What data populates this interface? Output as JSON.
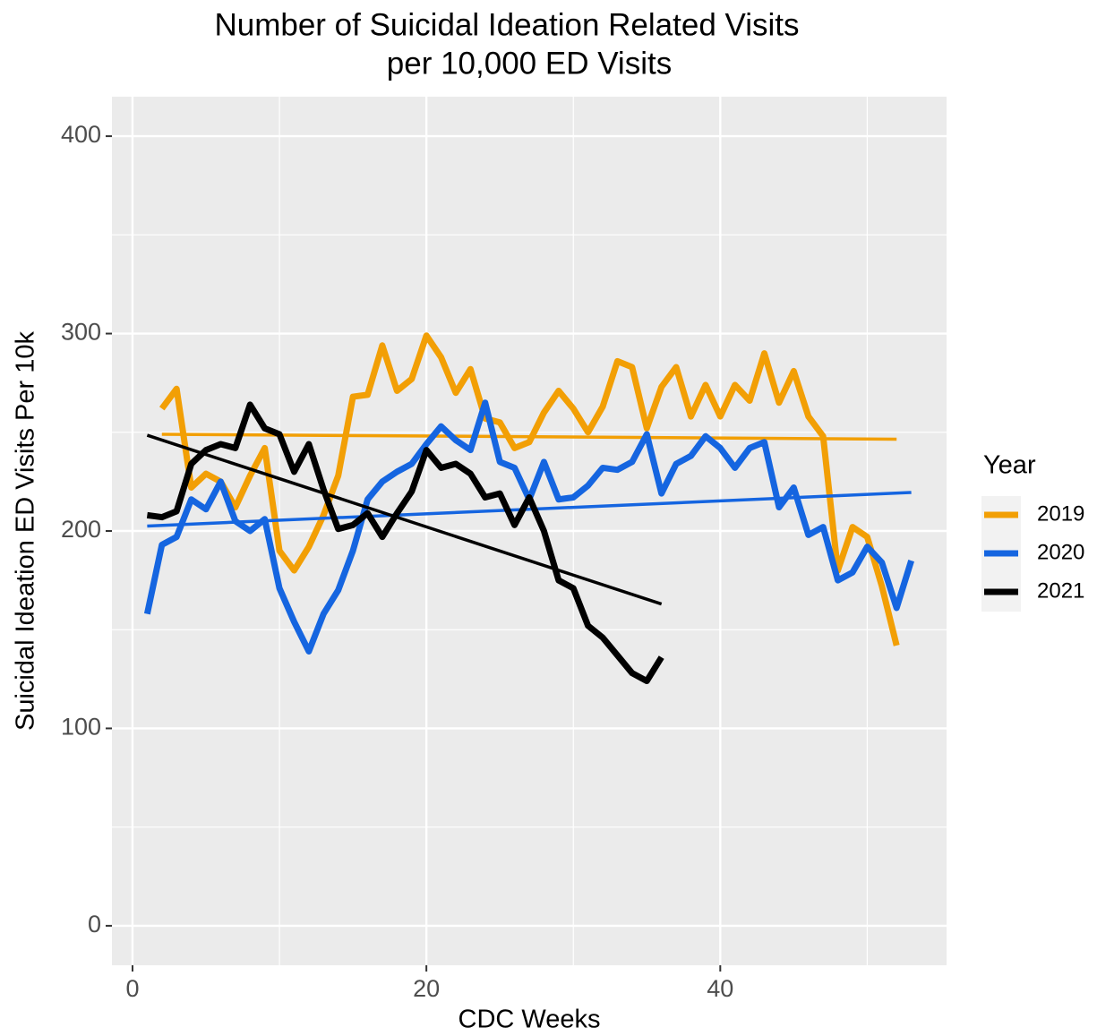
{
  "chart_data": {
    "type": "line",
    "title": [
      "Number of Suicidal Ideation Related Visits",
      "per 10,000 ED Visits"
    ],
    "x_label": "CDC Weeks",
    "y_label": "Suicidal Ideation ED Visits Per 10k",
    "legend_title": "Year",
    "legend_position": "right",
    "grid": true,
    "xlim": [
      -1.4,
      55.4
    ],
    "ylim": [
      -20,
      420
    ],
    "xticks": [
      0,
      20,
      40
    ],
    "yticks": [
      0,
      100,
      200,
      300,
      400
    ],
    "x": [
      1,
      2,
      3,
      4,
      5,
      6,
      7,
      8,
      9,
      10,
      11,
      12,
      13,
      14,
      15,
      16,
      17,
      18,
      19,
      20,
      21,
      22,
      23,
      24,
      25,
      26,
      27,
      28,
      29,
      30,
      31,
      32,
      33,
      34,
      35,
      36,
      37,
      38,
      39,
      40,
      41,
      42,
      43,
      44,
      45,
      46,
      47,
      48,
      49,
      50,
      51,
      52,
      53
    ],
    "series": [
      {
        "name": "2019",
        "color": "#f29f05",
        "values": [
          null,
          262,
          272,
          222,
          229,
          225,
          212,
          228,
          242,
          190,
          180,
          192,
          208,
          228,
          268,
          269,
          294,
          271,
          277,
          299,
          288,
          270,
          282,
          257,
          255,
          242,
          245,
          260,
          271,
          262,
          250,
          263,
          286,
          283,
          252,
          273,
          283,
          258,
          274,
          258,
          274,
          266,
          290,
          265,
          281,
          258,
          248,
          180,
          202,
          197,
          172,
          142,
          null
        ],
        "trend": {
          "x": [
            2,
            52
          ],
          "values": [
            249,
            246.5
          ]
        }
      },
      {
        "name": "2020",
        "color": "#1565e0",
        "values": [
          158,
          193,
          197,
          216,
          211,
          225,
          205,
          200,
          206,
          171,
          154,
          139,
          158,
          170,
          190,
          216,
          225,
          230,
          234,
          244,
          253,
          246,
          241,
          265,
          235,
          232,
          216,
          235,
          216,
          217,
          223,
          232,
          231,
          235,
          249,
          219,
          234,
          238,
          248,
          242,
          232,
          242,
          245,
          212,
          222,
          198,
          202,
          175,
          179,
          192,
          184,
          161,
          185
        ],
        "trend": {
          "x": [
            1,
            53
          ],
          "values": [
            202.5,
            219.5
          ]
        }
      },
      {
        "name": "2021",
        "color": "#000000",
        "values": [
          208,
          207,
          210,
          234,
          241,
          244,
          242,
          264,
          252,
          249,
          230,
          244,
          221,
          201,
          203,
          209,
          197,
          209,
          220,
          241,
          232,
          234,
          229,
          217,
          219,
          203,
          217,
          200,
          175,
          171,
          152,
          146,
          137,
          128,
          124,
          136,
          null,
          null,
          null,
          null,
          null,
          null,
          null,
          null,
          null,
          null,
          null,
          null,
          null,
          null,
          null,
          null,
          null
        ],
        "trend": {
          "x": [
            1,
            36
          ],
          "values": [
            248.5,
            163
          ]
        }
      }
    ]
  }
}
